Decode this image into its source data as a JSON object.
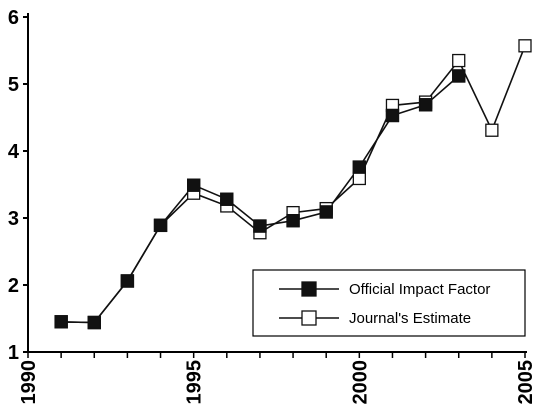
{
  "chart_data": {
    "type": "line",
    "title": "",
    "xlabel": "",
    "ylabel": "",
    "xlim": [
      1990,
      2005
    ],
    "ylim": [
      1,
      6
    ],
    "x_ticks": [
      1990,
      1995,
      2000,
      2005
    ],
    "y_ticks": [
      1,
      2,
      3,
      4,
      5,
      6
    ],
    "x_tick_labels": [
      "1990",
      "1995",
      "2000",
      "2005"
    ],
    "y_tick_labels": [
      "1",
      "2",
      "3",
      "4",
      "5",
      "6"
    ],
    "grid": false,
    "legend_position": "bottom-right",
    "series": [
      {
        "name": "Official Impact Factor",
        "marker": "filled-square",
        "color": "#111111",
        "x": [
          1991,
          1992,
          1993,
          1994,
          1995,
          1996,
          1997,
          1998,
          1999,
          2000,
          2001,
          2002,
          2003
        ],
        "y": [
          1.45,
          1.44,
          2.06,
          2.89,
          3.49,
          3.28,
          2.88,
          2.96,
          3.09,
          3.76,
          4.53,
          4.69,
          5.12
        ]
      },
      {
        "name": "Journal's Estimate",
        "marker": "open-square",
        "color": "#111111",
        "x": [
          1991,
          1992,
          1993,
          1994,
          1995,
          1996,
          1997,
          1998,
          1999,
          2000,
          2001,
          2002,
          2003,
          2004,
          2005
        ],
        "y": [
          1.45,
          1.44,
          2.06,
          2.89,
          3.37,
          3.18,
          2.78,
          3.08,
          3.14,
          3.59,
          4.68,
          4.73,
          5.35,
          4.31,
          5.57
        ]
      }
    ]
  }
}
